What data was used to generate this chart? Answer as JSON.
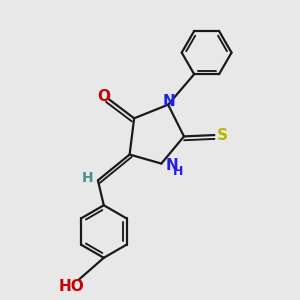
{
  "bg_color": "#e8e8e8",
  "bond_color": "#1a1a1a",
  "N_color": "#2020ee",
  "O_color": "#cc0000",
  "S_color": "#b8b800",
  "H_color": "#4a9090",
  "bond_width": 1.6,
  "font_size_atom": 11,
  "font_size_small": 9,
  "figsize": [
    3.0,
    3.0
  ],
  "dpi": 100,
  "xlim": [
    -2.2,
    2.8
  ],
  "ylim": [
    -3.5,
    3.0
  ]
}
